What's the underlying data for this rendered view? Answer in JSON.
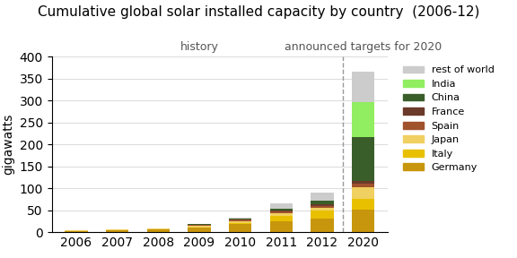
{
  "chart_data": {
    "type": "bar",
    "stacked": true,
    "title": "Cumulative global solar installed capacity by country  (2006-12)",
    "y_label": "gigawatts",
    "categories": [
      "2006",
      "2007",
      "2008",
      "2009",
      "2010",
      "2011",
      "2012",
      "2020"
    ],
    "series": [
      {
        "name": "Germany",
        "color": "#c8960c",
        "values": [
          2.0,
          4.0,
          6.0,
          10.0,
          18.0,
          25.0,
          32.0,
          52.0
        ]
      },
      {
        "name": "Italy",
        "color": "#e8c000",
        "values": [
          0.1,
          0.2,
          0.4,
          1.2,
          3.5,
          13.0,
          17.0,
          23.0
        ]
      },
      {
        "name": "Japan",
        "color": "#f0d060",
        "values": [
          1.4,
          1.9,
          2.1,
          2.6,
          3.6,
          4.8,
          6.5,
          28.0
        ]
      },
      {
        "name": "Spain",
        "color": "#a0522d",
        "values": [
          0.1,
          0.1,
          0.2,
          3.5,
          3.8,
          4.2,
          4.5,
          8.5
        ]
      },
      {
        "name": "France",
        "color": "#6b3a2a",
        "values": [
          0.0,
          0.1,
          0.1,
          0.3,
          1.0,
          2.5,
          4.0,
          5.5
        ]
      },
      {
        "name": "China",
        "color": "#3a5e2a",
        "values": [
          0.1,
          0.1,
          0.1,
          0.3,
          0.9,
          3.3,
          7.0,
          100.0
        ]
      },
      {
        "name": "India",
        "color": "#90ee60",
        "values": [
          0.0,
          0.0,
          0.0,
          0.0,
          0.1,
          0.5,
          1.0,
          80.0
        ]
      },
      {
        "name": "rest of world",
        "color": "#cccccc",
        "values": [
          0.1,
          0.3,
          0.5,
          0.8,
          2.0,
          12.0,
          18.0,
          70.0
        ]
      }
    ],
    "annotations": [
      {
        "text": "history",
        "categories": [
          "2006",
          "2007",
          "2008",
          "2009",
          "2010",
          "2011",
          "2012"
        ]
      },
      {
        "text": "announced targets for 2020",
        "categories": [
          "2020"
        ]
      }
    ],
    "ylim": [
      0,
      400
    ],
    "yticks": [
      0,
      50,
      100,
      150,
      200,
      250,
      300,
      350,
      400
    ],
    "grid": true,
    "legend": "upper left"
  }
}
